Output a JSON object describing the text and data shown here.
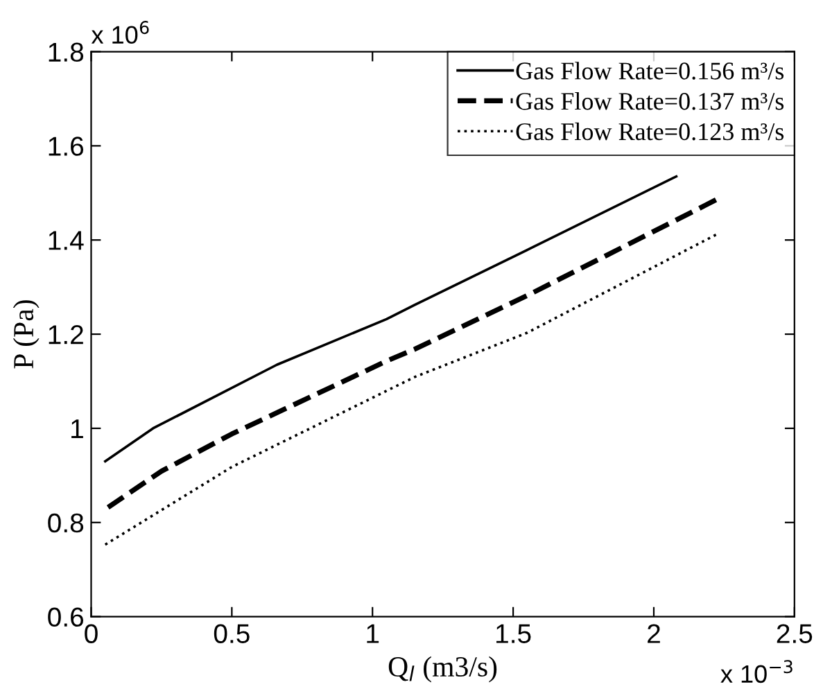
{
  "chart_data": {
    "type": "line",
    "xlabel": "Q$_{l}$ (m3/s)",
    "ylabel": "P (Pa)",
    "xlim": [
      0,
      2.5
    ],
    "xticks": [
      0,
      0.5,
      1,
      1.5,
      2,
      2.5
    ],
    "ylim": [
      0.6,
      1.8
    ],
    "yticks": [
      0.6,
      0.8,
      1,
      1.2,
      1.4,
      1.6,
      1.8
    ],
    "grid": false,
    "legend": "top right",
    "annotations": [
      "x 10$^{6}$",
      "x 10$^{−3}$"
    ],
    "series": [
      {
        "name": "Gas Flow Rate=0.156 m³/s",
        "color": "#000000",
        "line_style": "solid",
        "x": [
          0.05,
          0.22,
          0.66,
          1.05,
          1.15,
          1.55,
          2.08
        ],
        "values": [
          0.93,
          1.0,
          1.135,
          1.232,
          1.262,
          1.379,
          1.535
        ]
      },
      {
        "name": "Gas Flow Rate=0.137 m³/s",
        "color": "#000000",
        "line_style": "dashed",
        "x": [
          0.06,
          0.25,
          0.5,
          1.05,
          1.15,
          1.55,
          2.23
        ],
        "values": [
          0.832,
          0.909,
          0.988,
          1.143,
          1.168,
          1.282,
          1.488
        ]
      },
      {
        "name": "Gas Flow Rate=0.123 m³/s",
        "color": "#000000",
        "line_style": "dotted",
        "x": [
          0.05,
          0.5,
          1.15,
          1.55,
          2.23
        ],
        "values": [
          0.753,
          0.918,
          1.109,
          1.203,
          1.414
        ]
      }
    ]
  }
}
